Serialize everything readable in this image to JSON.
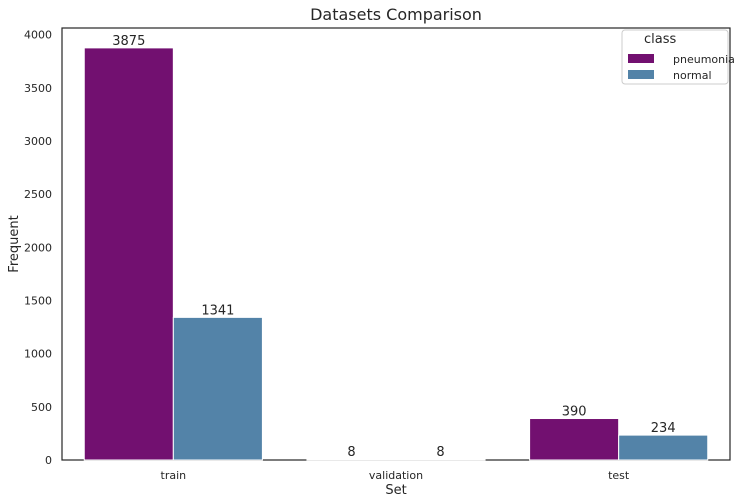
{
  "chart_data": {
    "type": "bar",
    "title": "Datasets Comparison",
    "xlabel": "Set",
    "ylabel": "Frequent",
    "categories": [
      "train",
      "validation",
      "test"
    ],
    "series": [
      {
        "name": "pneumonia",
        "values": [
          3875,
          8,
          390
        ],
        "color": "#721070"
      },
      {
        "name": "normal",
        "values": [
          1341,
          8,
          234
        ],
        "color": "#5383a8"
      }
    ],
    "ylim": [
      0,
      4062
    ],
    "yticks": [
      0,
      500,
      1000,
      1500,
      2000,
      2500,
      3000,
      3500,
      4000
    ],
    "legend": {
      "title": "class",
      "position": "top-right"
    },
    "grid": false
  }
}
